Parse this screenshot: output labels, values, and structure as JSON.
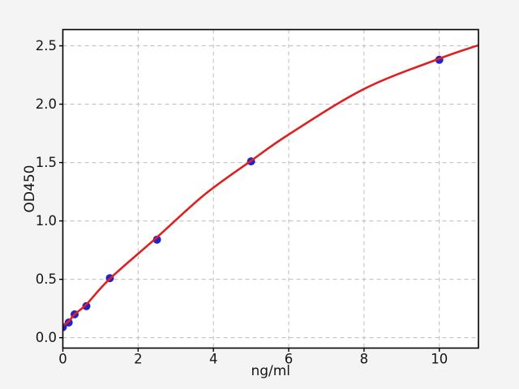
{
  "figure": {
    "background_color": "#f4f4f4",
    "plot_background_color": "#ffffff",
    "title": ""
  },
  "chart_data": {
    "type": "scatter",
    "title": "",
    "xlabel": "ng/ml",
    "ylabel": "OD450",
    "xlim": [
      0,
      11.04
    ],
    "ylim": [
      -0.089,
      2.639
    ],
    "grid": true,
    "legend": "none",
    "xticks": {
      "values": [
        0,
        2,
        4,
        6,
        8,
        10
      ],
      "labels": [
        "0",
        "2",
        "4",
        "6",
        "8",
        "10"
      ]
    },
    "yticks": {
      "values": [
        0,
        0.5,
        1.0,
        1.5,
        2.0,
        2.5
      ],
      "labels": [
        "0.0",
        "0.5",
        "1.0",
        "1.5",
        "2.0",
        "2.5"
      ]
    },
    "series": [
      {
        "name": "standard-points",
        "kind": "scatter",
        "color": "#2222cc",
        "marker_radius": 5,
        "points": [
          [
            0,
            0.09
          ],
          [
            0.156,
            0.13
          ],
          [
            0.3125,
            0.2
          ],
          [
            0.625,
            0.27
          ],
          [
            1.25,
            0.51
          ],
          [
            2.5,
            0.84
          ],
          [
            5,
            1.51
          ],
          [
            10,
            2.38
          ]
        ]
      },
      {
        "name": "fit-curve",
        "kind": "line",
        "color": "#dd2020",
        "line_width": 2.6,
        "points": [
          [
            0,
            0.105
          ],
          [
            0.156,
            0.14
          ],
          [
            0.3125,
            0.2
          ],
          [
            0.625,
            0.285
          ],
          [
            1.25,
            0.505
          ],
          [
            2.5,
            0.86
          ],
          [
            3.78,
            1.23
          ],
          [
            5,
            1.515
          ],
          [
            6,
            1.74
          ],
          [
            8,
            2.13
          ],
          [
            10,
            2.39
          ],
          [
            11.04,
            2.505
          ]
        ]
      }
    ],
    "styles": {
      "grid_color": "#bdbdbd",
      "grid_dash": "5 4",
      "spine_color": "#000000",
      "tick_color": "#000000",
      "text_color": "#151515"
    }
  }
}
